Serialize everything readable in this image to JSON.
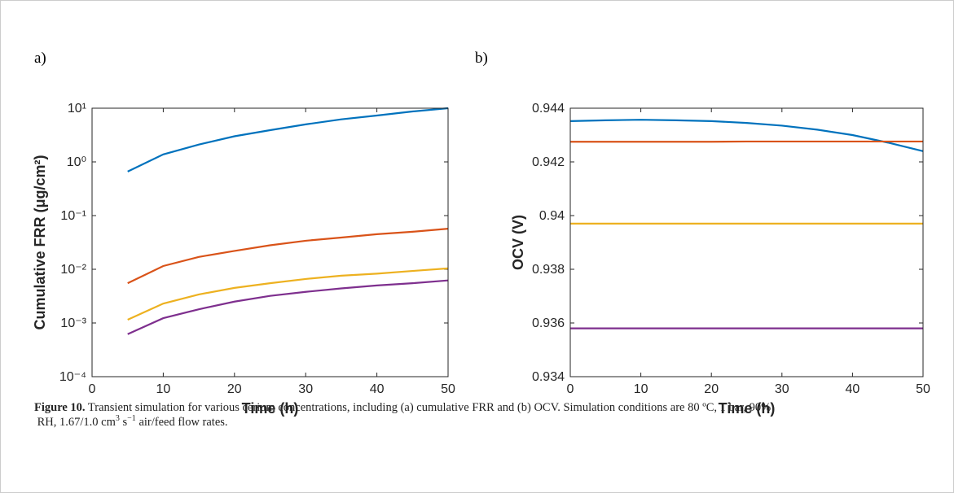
{
  "panel_labels": [
    "a)",
    "b)"
  ],
  "caption": {
    "label": "Figure 10.",
    "parts": [
      " Transient simulation for various cerium concentrations, including (a) cumulative FRR and (b) OCV. Simulation conditions are 80 ºC, 1 bar, 90% RH, 1.67/1.0 cm",
      "3",
      " s",
      "−1",
      " air/feed flow rates."
    ]
  },
  "chart_data": [
    {
      "type": "line",
      "xlabel": "Time (h)",
      "ylabel": "Cumulative FRR (μg/cm²)",
      "yscale": "log",
      "x": [
        5,
        10,
        15,
        20,
        25,
        30,
        35,
        40,
        45,
        50
      ],
      "xlim": [
        0,
        50
      ],
      "xticks": [
        0,
        10,
        20,
        30,
        40,
        50
      ],
      "ylim": [
        0.0001,
        10
      ],
      "yticks": [
        {
          "value": 0.0001,
          "label": "10⁻⁴"
        },
        {
          "value": 0.001,
          "label": "10⁻³"
        },
        {
          "value": 0.01,
          "label": "10⁻²"
        },
        {
          "value": 0.1,
          "label": "10⁻¹"
        },
        {
          "value": 1,
          "label": "10⁰"
        },
        {
          "value": 10,
          "label": "10¹"
        }
      ],
      "series": [
        {
          "color": "#0072BD",
          "values": [
            0.66,
            1.38,
            2.1,
            3.0,
            3.9,
            5.0,
            6.2,
            7.3,
            8.7,
            10
          ]
        },
        {
          "color": "#D95319",
          "values": [
            0.0055,
            0.0115,
            0.017,
            0.022,
            0.028,
            0.034,
            0.039,
            0.045,
            0.05,
            0.057
          ]
        },
        {
          "color": "#EDB120",
          "values": [
            0.00115,
            0.0023,
            0.0034,
            0.0045,
            0.0055,
            0.0066,
            0.0076,
            0.0083,
            0.0093,
            0.0104
          ]
        },
        {
          "color": "#7E2F8E",
          "values": [
            0.00062,
            0.00123,
            0.0018,
            0.0025,
            0.0032,
            0.0038,
            0.0044,
            0.005,
            0.0055,
            0.0062
          ]
        }
      ]
    },
    {
      "type": "line",
      "xlabel": "Time (h)",
      "ylabel": "OCV (V)",
      "x": [
        0,
        5,
        10,
        15,
        20,
        25,
        30,
        35,
        40,
        45,
        50
      ],
      "xlim": [
        0,
        50
      ],
      "xticks": [
        0,
        10,
        20,
        30,
        40,
        50
      ],
      "ylim": [
        0.934,
        0.944
      ],
      "yticks": [
        0.934,
        0.936,
        0.938,
        0.94,
        0.942,
        0.944
      ],
      "series": [
        {
          "color": "#0072BD",
          "values": [
            0.94352,
            0.94355,
            0.94357,
            0.94355,
            0.94352,
            0.94345,
            0.94335,
            0.9432,
            0.943,
            0.94272,
            0.9424
          ]
        },
        {
          "color": "#D95319",
          "values": [
            0.94275,
            0.94275,
            0.94275,
            0.94275,
            0.94275,
            0.94276,
            0.94276,
            0.94276,
            0.94276,
            0.94276,
            0.94276
          ]
        },
        {
          "color": "#EDB120",
          "values": [
            0.9397,
            0.9397,
            0.9397,
            0.9397,
            0.9397,
            0.9397,
            0.9397,
            0.9397,
            0.9397,
            0.9397,
            0.9397
          ]
        },
        {
          "color": "#7E2F8E",
          "values": [
            0.9358,
            0.9358,
            0.9358,
            0.9358,
            0.9358,
            0.9358,
            0.9358,
            0.9358,
            0.9358,
            0.9358,
            0.9358
          ]
        }
      ]
    }
  ]
}
